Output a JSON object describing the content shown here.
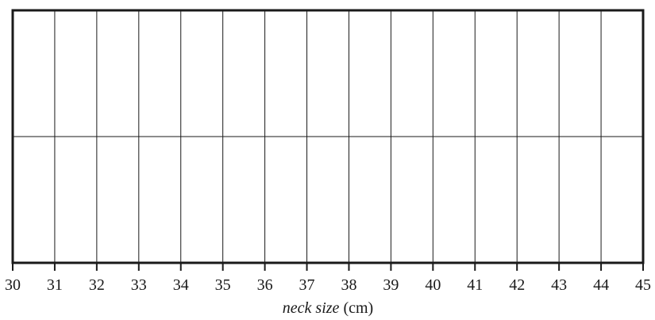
{
  "chart_data": {
    "type": "table",
    "title": "",
    "x": [
      30,
      31,
      32,
      33,
      34,
      35,
      36,
      37,
      38,
      39,
      40,
      41,
      42,
      43,
      44,
      45
    ],
    "xlim": [
      30,
      45
    ],
    "xlabel_italic": "neck size",
    "xlabel_unit": " (cm)",
    "ylabel": "",
    "rows": 2,
    "grid": true,
    "series": []
  }
}
